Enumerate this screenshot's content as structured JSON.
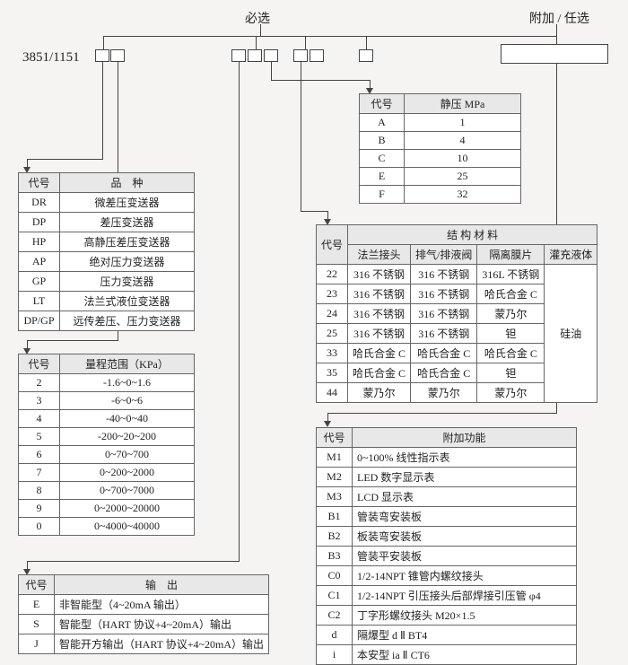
{
  "colors": {
    "line": "#444444",
    "header_bg": "#e8e8e8",
    "page_bg": "#f5f4f2",
    "table_bg": "#ffffff"
  },
  "font": {
    "base_size": 12,
    "family": "SimSun"
  },
  "top_labels": {
    "required": "必选",
    "optional": "附加 / 任选",
    "product": "3851/1151"
  },
  "tables": {
    "variety": {
      "headers": [
        "代号",
        "品　种"
      ],
      "rows": [
        [
          "DR",
          "微差压变送器"
        ],
        [
          "DP",
          "差压变送器"
        ],
        [
          "HP",
          "高静压差压变送器"
        ],
        [
          "AP",
          "绝对压力变送器"
        ],
        [
          "GP",
          "压力变送器"
        ],
        [
          "LT",
          "法兰式液位变送器"
        ],
        [
          "DP/GP",
          "远传差压、压力变送器"
        ]
      ]
    },
    "range": {
      "headers": [
        "代号",
        "量程范围（KPa）"
      ],
      "rows": [
        [
          "2",
          "-1.6~0~1.6"
        ],
        [
          "3",
          "-6~0~6"
        ],
        [
          "4",
          "-40~0~40"
        ],
        [
          "5",
          "-200~20~200"
        ],
        [
          "6",
          "0~70~700"
        ],
        [
          "7",
          "0~200~2000"
        ],
        [
          "8",
          "0~700~7000"
        ],
        [
          "9",
          "0~2000~20000"
        ],
        [
          "0",
          "0~4000~40000"
        ]
      ]
    },
    "output": {
      "headers": [
        "代号",
        "输　出"
      ],
      "rows": [
        [
          "E",
          "非智能型（4~20mA 输出）"
        ],
        [
          "S",
          "智能型（HART 协议+4~20mA）输出"
        ],
        [
          "J",
          "智能开方输出（HART 协议+4~20mA）输出"
        ]
      ]
    },
    "static_pressure": {
      "headers": [
        "代号",
        "静压 MPa"
      ],
      "rows": [
        [
          "A",
          "1"
        ],
        [
          "B",
          "4"
        ],
        [
          "C",
          "10"
        ],
        [
          "E",
          "25"
        ],
        [
          "F",
          "32"
        ]
      ]
    },
    "material": {
      "group_header": "结 构 材 料",
      "headers": [
        "代号",
        "法兰接头",
        "排气/排液阀",
        "隔离膜片",
        "灌充液体"
      ],
      "fill_liquid": "硅油",
      "rows": [
        [
          "22",
          "316 不锈钢",
          "316 不锈钢",
          "316L 不锈钢"
        ],
        [
          "23",
          "316 不锈钢",
          "316 不锈钢",
          "哈氏合金 C"
        ],
        [
          "24",
          "316 不锈钢",
          "316 不锈钢",
          "蒙乃尔"
        ],
        [
          "25",
          "316 不锈钢",
          "316 不锈钢",
          "钽"
        ],
        [
          "33",
          "哈氏合金 C",
          "哈氏合金 C",
          "哈氏合金 C"
        ],
        [
          "35",
          "哈氏合金 C",
          "哈氏合金 C",
          "钽"
        ],
        [
          "44",
          "蒙乃尔",
          "蒙乃尔",
          "蒙乃尔"
        ]
      ]
    },
    "extras": {
      "headers": [
        "代号",
        "附加功能"
      ],
      "rows": [
        [
          "M1",
          "0~100% 线性指示表"
        ],
        [
          "M2",
          "LED 数字显示表"
        ],
        [
          "M3",
          "LCD 显示表"
        ],
        [
          "B1",
          "管装弯安装板"
        ],
        [
          "B2",
          "板装弯安装板"
        ],
        [
          "B3",
          "管装平安装板"
        ],
        [
          "C0",
          "1/2-14NPT 锥管内螺纹接头"
        ],
        [
          "C1",
          "1/2-14NPT 引压接头后部焊接引压管 φ4"
        ],
        [
          "C2",
          "丁字形螺纹接头 M20×1.5"
        ],
        [
          "d",
          "隔爆型 d Ⅱ BT4"
        ],
        [
          "i",
          "本安型 ia Ⅱ CT6"
        ]
      ]
    }
  },
  "stub_positions": {
    "pair1": [
      106,
      123
    ],
    "group": [
      258,
      276,
      294,
      327,
      345,
      400
    ],
    "y": 55
  }
}
